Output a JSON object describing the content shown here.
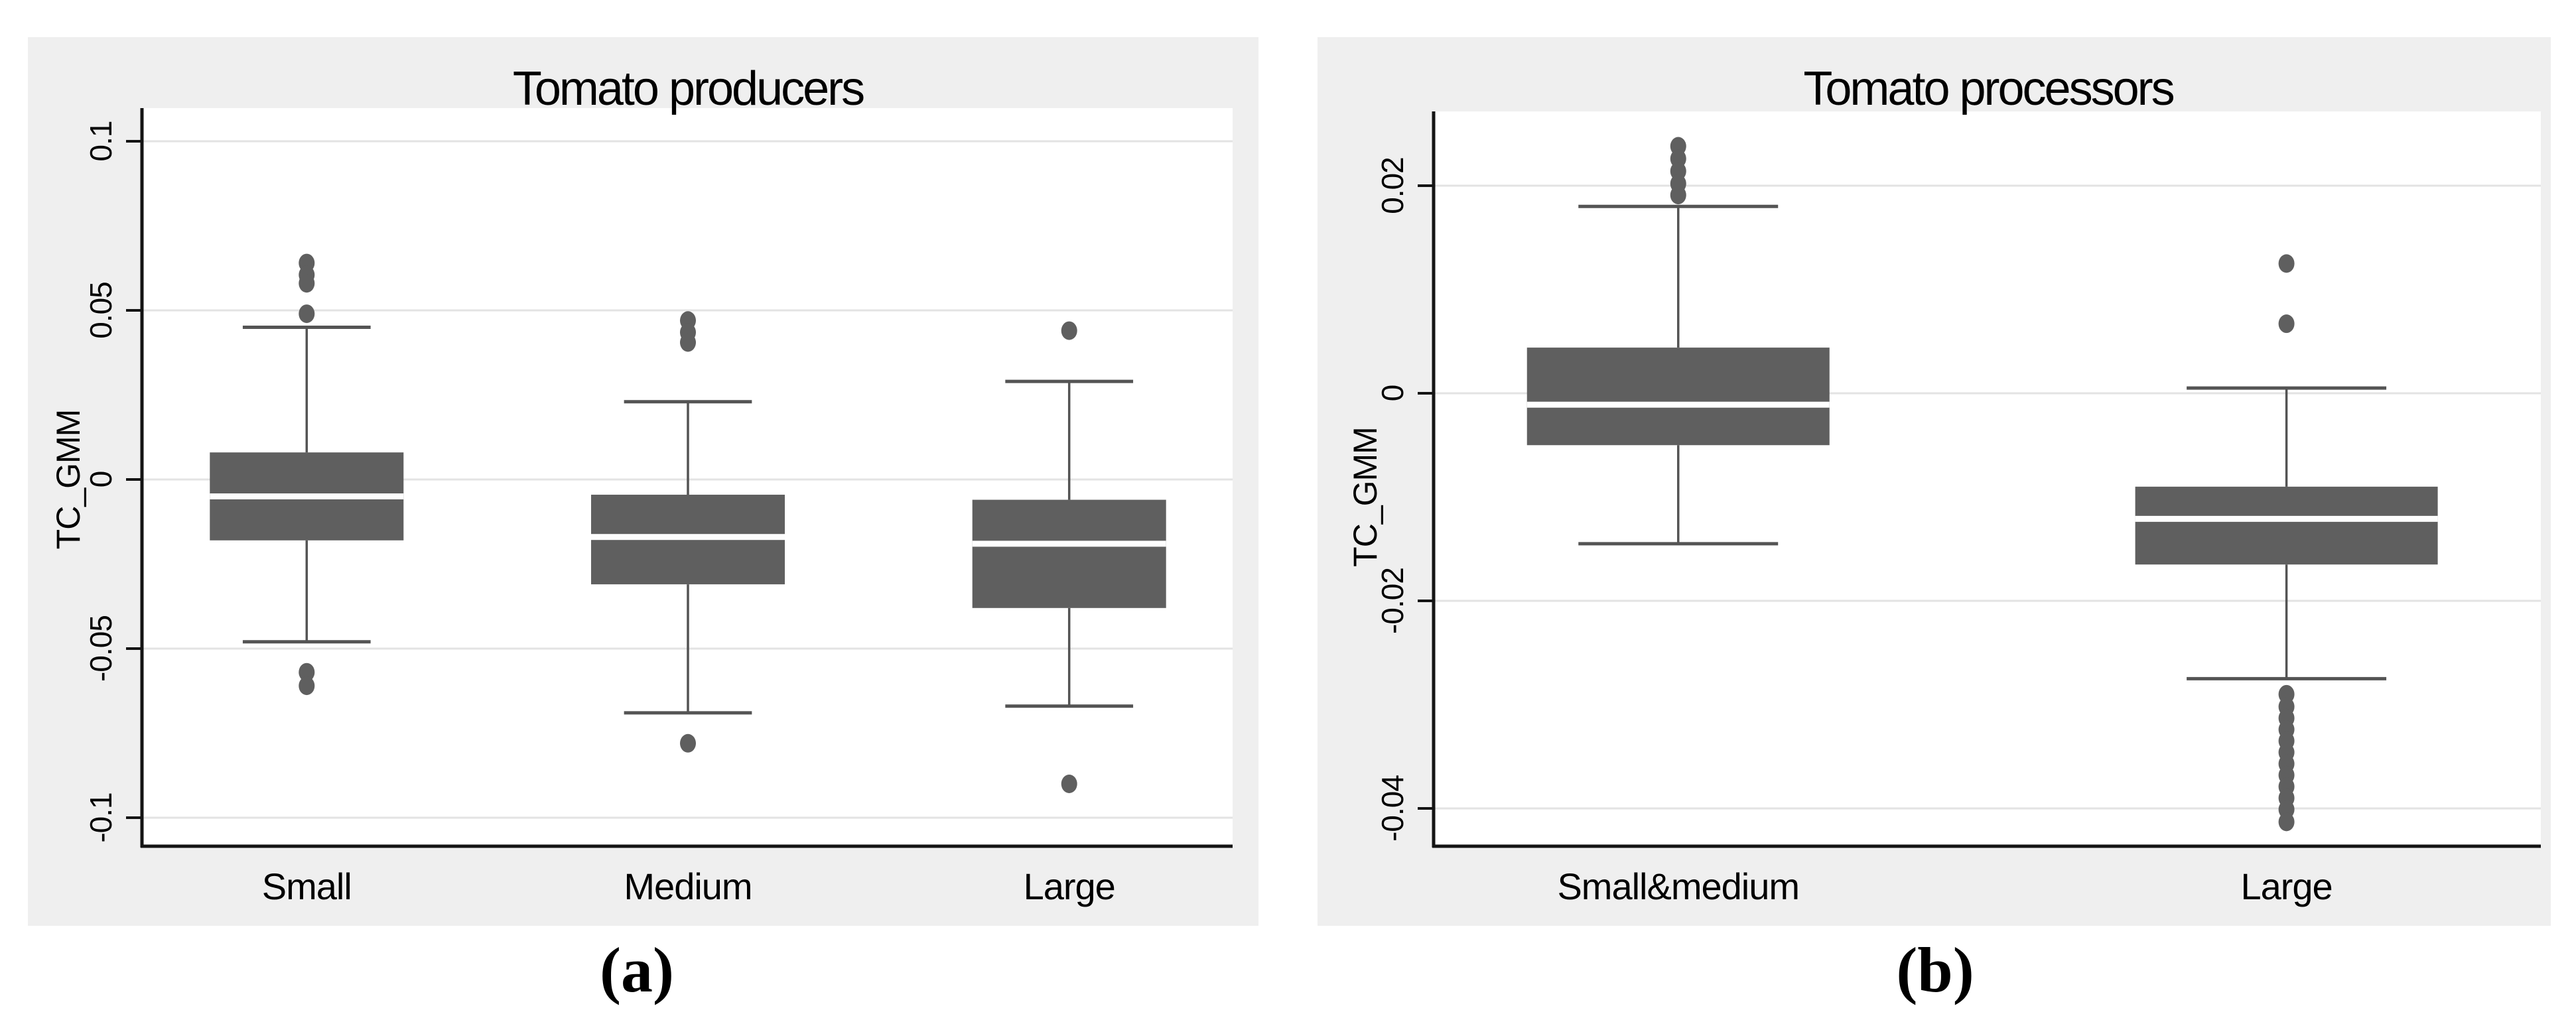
{
  "figure": {
    "background": "#ffffff",
    "panel_color": "#efefef",
    "grid_color": "#e3e3e3",
    "axis_color": "#141414",
    "box_color": "#5f5f5f",
    "whisker_color": "#545454",
    "median_color": "#fefefe",
    "outlier_color": "#5f5f5f",
    "text_color": "#000000"
  },
  "chart_data": [
    {
      "type": "box",
      "title": "Tomato producers",
      "ylabel": "TC_GMM",
      "xlabel": "",
      "caption": "(a)",
      "grid": true,
      "legend": "none",
      "ylim": [
        -0.108,
        0.11
      ],
      "yticks": [
        0.1,
        0.05,
        0,
        -0.05,
        -0.1
      ],
      "ytick_labels": [
        "0.1",
        "0.05",
        "0",
        "-0.05",
        "-0.1"
      ],
      "categories": [
        "Small",
        "Medium",
        "Large"
      ],
      "boxes": [
        {
          "label": "Small",
          "q1": -0.018,
          "median": -0.005,
          "q3": 0.008,
          "whisker_low": -0.048,
          "whisker_high": 0.045,
          "outliers": [
            0.064,
            0.0605,
            0.058,
            0.049,
            -0.057,
            -0.061
          ]
        },
        {
          "label": "Medium",
          "q1": -0.031,
          "median": -0.017,
          "q3": -0.0045,
          "whisker_low": -0.069,
          "whisker_high": 0.023,
          "outliers": [
            0.047,
            0.0435,
            0.0405,
            -0.078
          ]
        },
        {
          "label": "Large",
          "q1": -0.038,
          "median": -0.019,
          "q3": -0.006,
          "whisker_low": -0.067,
          "whisker_high": 0.029,
          "outliers": [
            0.044,
            -0.09
          ]
        }
      ]
    },
    {
      "type": "box",
      "title": "Tomato processors",
      "ylabel": "TC_GMM",
      "xlabel": "",
      "caption": "(b)",
      "grid": true,
      "legend": "none",
      "ylim": [
        -0.0435,
        0.0272
      ],
      "yticks": [
        0.02,
        0,
        -0.02,
        -0.04
      ],
      "ytick_labels": [
        "0.02",
        "0",
        "-0.02",
        "-0.04"
      ],
      "categories": [
        "Small&medium",
        "Large"
      ],
      "boxes": [
        {
          "label": "Small&medium",
          "q1": -0.005,
          "median": -0.0011,
          "q3": 0.0044,
          "whisker_low": -0.0145,
          "whisker_high": 0.018,
          "outliers": [
            0.0238,
            0.0226,
            0.0214,
            0.0202,
            0.0191
          ]
        },
        {
          "label": "Large",
          "q1": -0.0165,
          "median": -0.0121,
          "q3": -0.009,
          "whisker_low": -0.0275,
          "whisker_high": 0.0005,
          "outliers": [
            0.0125,
            0.0067,
            -0.029,
            -0.0302,
            -0.0313,
            -0.0324,
            -0.0335,
            -0.0346,
            -0.0357,
            -0.0368,
            -0.0379,
            -0.039,
            -0.0401,
            -0.0413
          ]
        }
      ]
    }
  ]
}
